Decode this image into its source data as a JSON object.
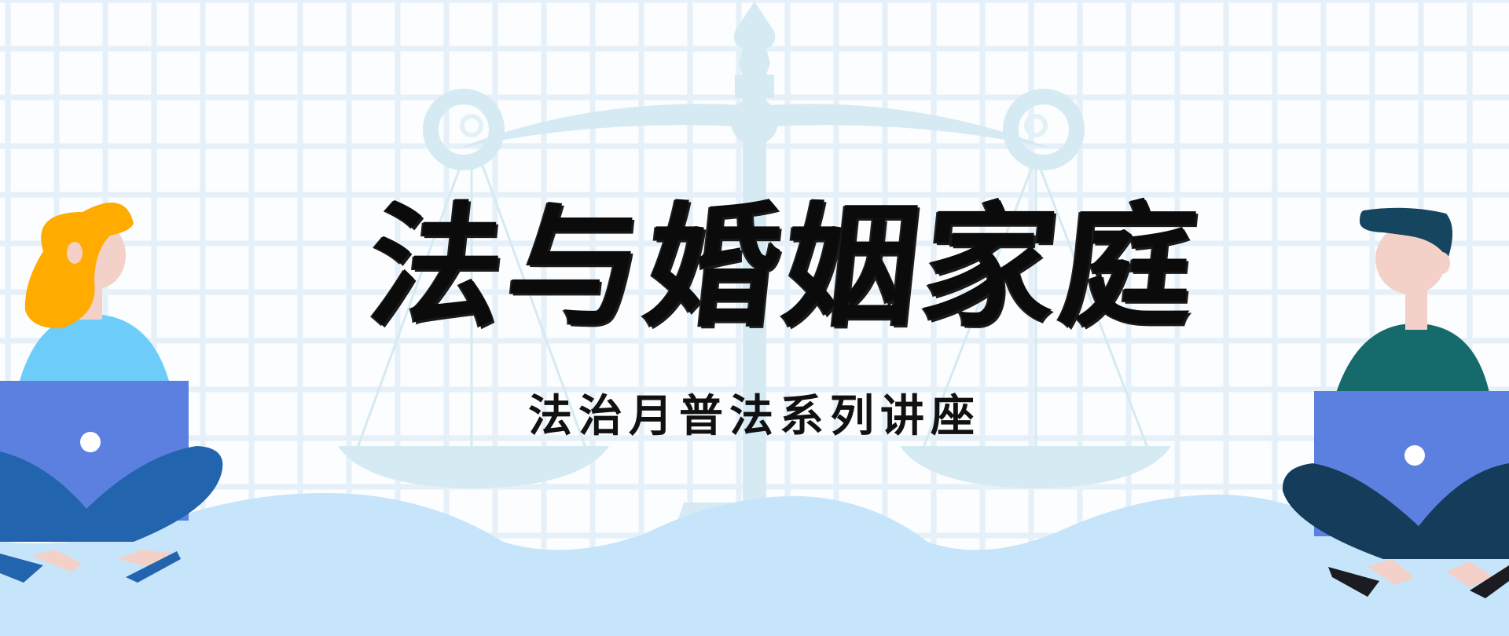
{
  "banner": {
    "title": "法与婚姻家庭",
    "subtitle": "法治月普法系列讲座"
  },
  "colors": {
    "grid": "#e6f0f8",
    "scale": "#d5eaf2",
    "wave": "#c6e4fa",
    "woman_hair": "#ffab00",
    "woman_shirt": "#6ecdf8",
    "laptop": "#5b80e0",
    "woman_pants": "#2264ad",
    "man_hair": "#16455f",
    "man_shirt": "#176a6c",
    "man_pants": "#163c5c",
    "skin": "#f3d1c8",
    "text": "#0b0b0b"
  },
  "icons": [
    "scale-of-justice-icon",
    "woman-with-laptop-icon",
    "man-with-laptop-icon"
  ]
}
